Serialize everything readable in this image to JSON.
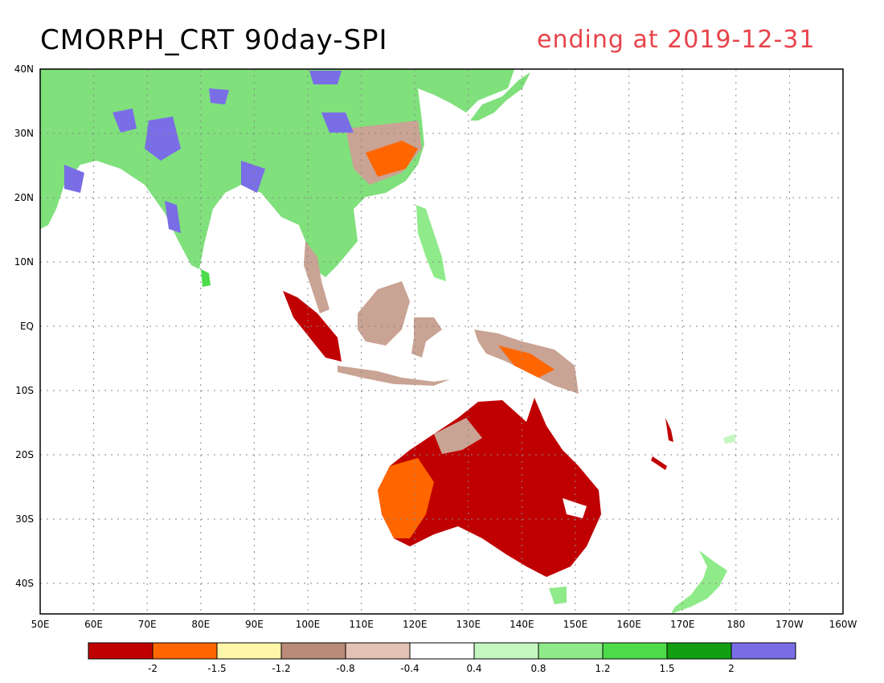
{
  "title": "CMORPH_CRT 90day-SPI",
  "subtitle": "ending at 2019-12-31",
  "map": {
    "lon_labels": [
      "50E",
      "60E",
      "70E",
      "80E",
      "90E",
      "100E",
      "110E",
      "120E",
      "130E",
      "140E",
      "150E",
      "160E",
      "170E",
      "180",
      "170W",
      "160W"
    ],
    "lat_labels": [
      "40N",
      "30N",
      "20N",
      "10N",
      "EQ",
      "10S",
      "20S",
      "30S",
      "40S"
    ]
  },
  "legend": {
    "colors": [
      "#c00000",
      "#ff6600",
      "#fff6a8",
      "#b88a78",
      "#e3c1b4",
      "#ffffff",
      "#c4f7c0",
      "#8fea8a",
      "#4cdc4a",
      "#12a012",
      "#7a6ee6"
    ],
    "labels": [
      "-2",
      "-1.5",
      "-1.2",
      "-0.8",
      "-0.4",
      "0.4",
      "0.8",
      "1.2",
      "1.5",
      "2"
    ]
  }
}
